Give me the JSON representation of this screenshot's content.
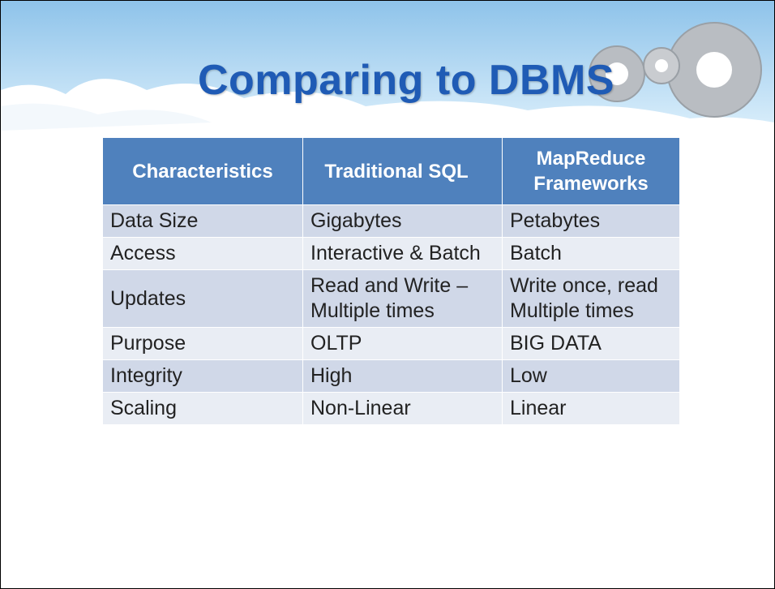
{
  "title": "Comparing to DBMS",
  "table": {
    "headers": [
      "Characteristics",
      "Traditional SQL",
      "MapReduce Frameworks"
    ],
    "rows": [
      [
        "Data Size",
        "Gigabytes",
        "Petabytes"
      ],
      [
        "Access",
        "Interactive & Batch",
        "Batch"
      ],
      [
        "Updates",
        "Read and Write – Multiple times",
        "Write once, read Multiple times"
      ],
      [
        "Purpose",
        "OLTP",
        "BIG DATA"
      ],
      [
        "Integrity",
        "High",
        "Low"
      ],
      [
        "Scaling",
        "Non-Linear",
        "Linear"
      ]
    ]
  }
}
